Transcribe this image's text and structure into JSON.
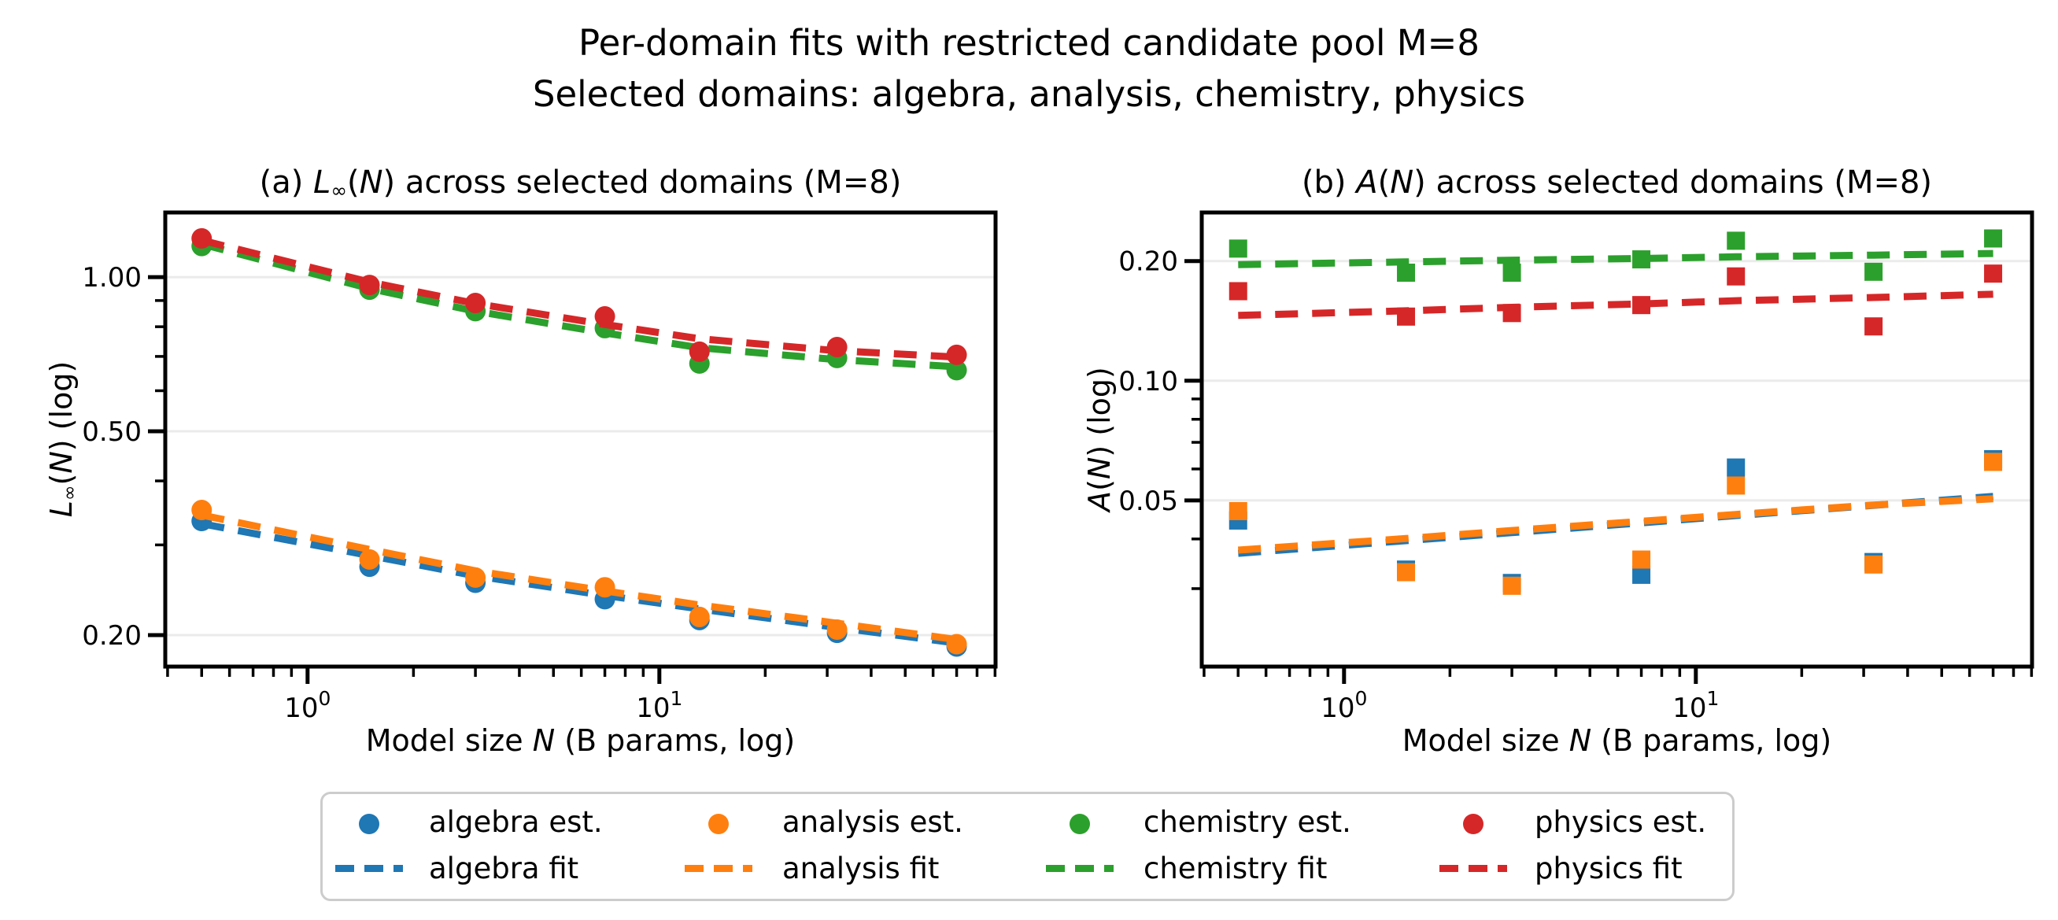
{
  "figure": {
    "suptitle_line1": "Per-domain fits with restricted candidate pool M=8",
    "suptitle_line2": "Selected domains: algebra, analysis, chemistry, physics"
  },
  "colors": {
    "algebra": "#1f77b4",
    "analysis": "#ff7f0e",
    "chemistry": "#2ca02c",
    "physics": "#d62728",
    "grid": "#ebebeb",
    "spine": "#000000",
    "legend_border": "#cccccc",
    "text": "#000000"
  },
  "legend": {
    "items": [
      {
        "name": "algebra",
        "est_label": "algebra est.",
        "fit_label": "algebra fit"
      },
      {
        "name": "analysis",
        "est_label": "analysis est.",
        "fit_label": "analysis fit"
      },
      {
        "name": "chemistry",
        "est_label": "chemistry est.",
        "fit_label": "chemistry fit"
      },
      {
        "name": "physics",
        "est_label": "physics est.",
        "fit_label": "physics fit"
      }
    ]
  },
  "chart_data": [
    {
      "type": "scatter",
      "panel": "a",
      "title_parts": {
        "t1": "(a) ",
        "var": "L",
        "sub": "∞",
        "t2": "(",
        "arg": "N",
        "t3": ") across selected domains (M=8)"
      },
      "ylabel_parts": {
        "var": "L",
        "sub": "∞",
        "t2": "(",
        "arg": "N",
        "t3": ") (log)"
      },
      "xlabel_parts": {
        "t1": "Model size ",
        "arg": "N",
        "t2": " (B params, log)"
      },
      "xscale": "log",
      "yscale": "log",
      "grid": true,
      "legend_position": "below-figure",
      "xlim": [
        0.394,
        90.3
      ],
      "ylim": [
        0.1736,
        1.337
      ],
      "xticks": [
        {
          "v": 1,
          "mant": "10",
          "exp": "0"
        },
        {
          "v": 10,
          "mant": "10",
          "exp": "1"
        }
      ],
      "xminor": [
        0.4,
        0.5,
        0.6,
        0.7,
        0.8,
        0.9,
        2,
        3,
        4,
        5,
        6,
        7,
        8,
        9,
        20,
        30,
        40,
        50,
        60,
        70,
        80,
        90
      ],
      "yticks": [
        {
          "v": 1.0,
          "label": "1.00"
        },
        {
          "v": 0.5,
          "label": "0.50"
        },
        {
          "v": 0.2,
          "label": "0.20"
        }
      ],
      "yminor": [
        0.9,
        0.8,
        0.7,
        0.6,
        0.4,
        0.3
      ],
      "x": [
        0.5,
        1.5,
        3,
        7,
        13,
        32,
        70
      ],
      "series": [
        {
          "name": "algebra",
          "marker": "circle",
          "est": [
            0.334,
            0.272,
            0.253,
            0.235,
            0.214,
            0.202,
            0.19
          ],
          "fit": [
            0.33,
            0.286,
            0.261,
            0.239,
            0.225,
            0.207,
            0.193
          ]
        },
        {
          "name": "analysis",
          "marker": "circle",
          "est": [
            0.351,
            0.281,
            0.259,
            0.248,
            0.217,
            0.205,
            0.192
          ],
          "fit": [
            0.343,
            0.294,
            0.267,
            0.244,
            0.229,
            0.211,
            0.196
          ]
        },
        {
          "name": "chemistry",
          "marker": "circle",
          "est": [
            1.15,
            0.945,
            0.858,
            0.795,
            0.678,
            0.695,
            0.658
          ],
          "fit": [
            1.16,
            0.95,
            0.858,
            0.778,
            0.728,
            0.69,
            0.668
          ]
        },
        {
          "name": "physics",
          "marker": "circle",
          "est": [
            1.19,
            0.965,
            0.89,
            0.838,
            0.715,
            0.73,
            0.705
          ],
          "fit": [
            1.18,
            0.978,
            0.888,
            0.808,
            0.758,
            0.718,
            0.698
          ]
        }
      ]
    },
    {
      "type": "scatter",
      "panel": "b",
      "title_parts": {
        "t1": "(b) ",
        "var": "A",
        "t2": "(",
        "arg": "N",
        "t3": ") across selected domains (M=8)"
      },
      "ylabel_parts": {
        "var": "A",
        "t2": "(",
        "arg": "N",
        "t3": ") (log)"
      },
      "xlabel_parts": {
        "t1": "Model size ",
        "arg": "N",
        "t2": " (B params, log)"
      },
      "xscale": "log",
      "yscale": "log",
      "grid": true,
      "xlim": [
        0.394,
        90.3
      ],
      "ylim": [
        0.0191,
        0.265
      ],
      "xticks": [
        {
          "v": 1,
          "mant": "10",
          "exp": "0"
        },
        {
          "v": 10,
          "mant": "10",
          "exp": "1"
        }
      ],
      "xminor": [
        0.4,
        0.5,
        0.6,
        0.7,
        0.8,
        0.9,
        2,
        3,
        4,
        5,
        6,
        7,
        8,
        9,
        20,
        30,
        40,
        50,
        60,
        70,
        80,
        90
      ],
      "yticks": [
        {
          "v": 0.2,
          "label": "0.20"
        },
        {
          "v": 0.1,
          "label": "0.10"
        },
        {
          "v": 0.05,
          "label": "0.05"
        }
      ],
      "yminor": [
        0.09,
        0.08,
        0.07,
        0.06,
        0.04,
        0.03
      ],
      "x": [
        0.5,
        1.5,
        3,
        7,
        13,
        32,
        70
      ],
      "series": [
        {
          "name": "algebra",
          "marker": "square",
          "est": [
            0.0445,
            0.0335,
            0.031,
            0.0325,
            0.0605,
            0.035,
            0.0635
          ],
          "fit": [
            0.0368,
            0.0396,
            0.0415,
            0.0439,
            0.0458,
            0.0486,
            0.0512
          ]
        },
        {
          "name": "analysis",
          "marker": "square",
          "est": [
            0.047,
            0.033,
            0.0305,
            0.0355,
            0.0545,
            0.0345,
            0.0625
          ],
          "fit": [
            0.0375,
            0.0401,
            0.042,
            0.0443,
            0.0461,
            0.0487,
            0.0505
          ]
        },
        {
          "name": "chemistry",
          "marker": "square",
          "est": [
            0.215,
            0.187,
            0.187,
            0.202,
            0.225,
            0.188,
            0.228
          ],
          "fit": [
            0.196,
            0.199,
            0.201,
            0.203,
            0.205,
            0.207,
            0.209
          ]
        },
        {
          "name": "physics",
          "marker": "square",
          "est": [
            0.168,
            0.145,
            0.148,
            0.155,
            0.183,
            0.137,
            0.186
          ],
          "fit": [
            0.146,
            0.15,
            0.153,
            0.156,
            0.159,
            0.162,
            0.165
          ]
        }
      ]
    }
  ]
}
